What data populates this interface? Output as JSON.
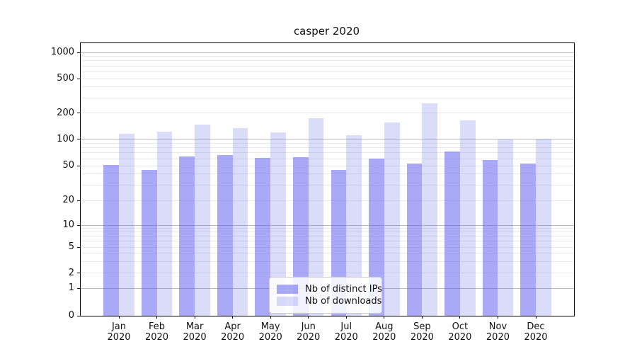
{
  "chart_data": {
    "type": "bar",
    "title": "casper 2020",
    "categories": [
      "Jan 2020",
      "Feb 2020",
      "Mar 2020",
      "Apr 2020",
      "May 2020",
      "Jun 2020",
      "Jul 2020",
      "Aug 2020",
      "Sep 2020",
      "Oct 2020",
      "Nov 2020",
      "Dec 2020"
    ],
    "x_tick_line1": [
      "Jan",
      "Feb",
      "Mar",
      "Apr",
      "May",
      "Jun",
      "Jul",
      "Aug",
      "Sep",
      "Oct",
      "Nov",
      "Dec"
    ],
    "x_tick_line2": "2020",
    "series": [
      {
        "name": "Nb of distinct IPs",
        "color": "#6363f0",
        "alpha": 0.55,
        "values": [
          51,
          45,
          64,
          66,
          61,
          62,
          45,
          60,
          53,
          73,
          58,
          53
        ]
      },
      {
        "name": "Nb of downloads",
        "color": "#6f6feb",
        "alpha": 0.25,
        "values": [
          116,
          122,
          148,
          133,
          119,
          175,
          110,
          154,
          260,
          164,
          100,
          101
        ]
      }
    ],
    "y_axis": {
      "scale": "symlog",
      "tick_labels": [
        "0",
        "1",
        "2",
        "5",
        "10",
        "20",
        "50",
        "100",
        "200",
        "500",
        "1000"
      ],
      "tick_values": [
        0,
        1,
        2,
        5,
        10,
        20,
        50,
        100,
        200,
        500,
        1000
      ],
      "ylim": [
        0,
        1000
      ],
      "grid": "on",
      "major_grid_color": "#b9b9b9",
      "minor_grid_color": "#e9e9e9"
    },
    "legend": {
      "position": "lower-center",
      "entries": [
        "Nb of distinct IPs",
        "Nb of downloads"
      ]
    }
  }
}
